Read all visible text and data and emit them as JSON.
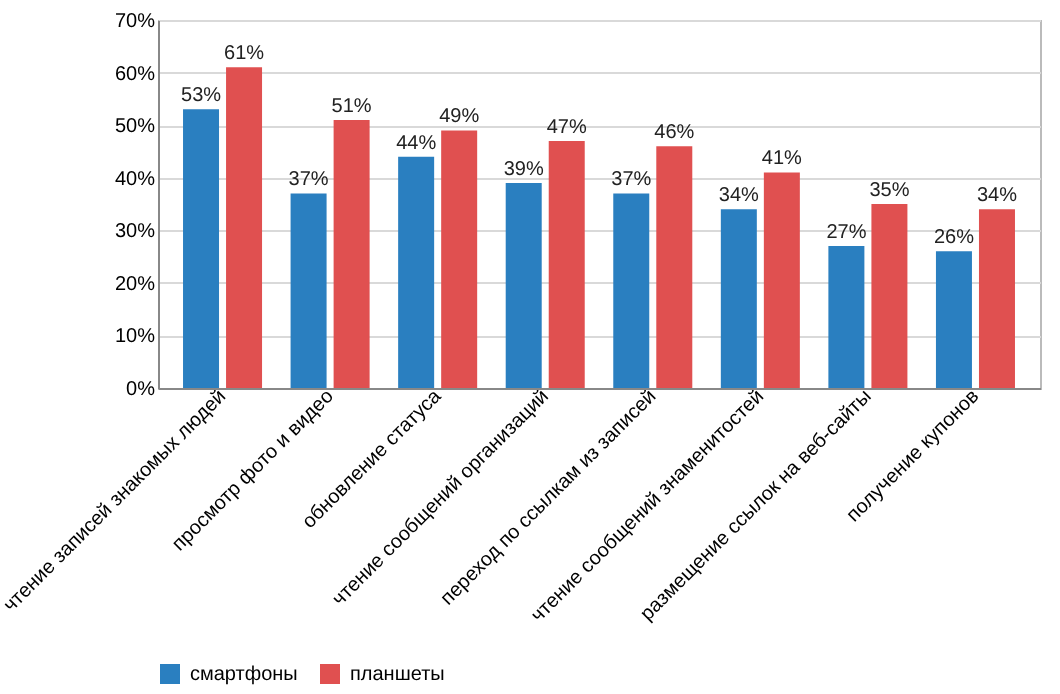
{
  "chart_data": {
    "type": "bar",
    "categories": [
      "чтение записей знакомых людей",
      "просмотр фото и видео",
      "обновление статуса",
      "чтение сообщений организаций",
      "переход по ссылкам из записей",
      "чтение сообщений знаменитостей",
      "размещение ссылок на веб-сайты",
      "получение купонов"
    ],
    "series": [
      {
        "name": "смартфоны",
        "color": "#2a7fc0",
        "values": [
          53,
          37,
          44,
          39,
          37,
          34,
          27,
          26
        ],
        "value_labels": [
          "53%",
          "37%",
          "44%",
          "39%",
          "37%",
          "34%",
          "27%",
          "26%"
        ]
      },
      {
        "name": "планшеты",
        "color": "#e05050",
        "values": [
          61,
          51,
          49,
          47,
          46,
          41,
          35,
          34
        ],
        "value_labels": [
          "61%",
          "51%",
          "49%",
          "47%",
          "46%",
          "41%",
          "35%",
          "34%"
        ]
      }
    ],
    "ylim": [
      0,
      70
    ],
    "yticks": [
      {
        "value": 0,
        "label": "0%"
      },
      {
        "value": 10,
        "label": "10%"
      },
      {
        "value": 20,
        "label": "20%"
      },
      {
        "value": 30,
        "label": "30%"
      },
      {
        "value": 40,
        "label": "40%"
      },
      {
        "value": 50,
        "label": "50%"
      },
      {
        "value": 60,
        "label": "60%"
      },
      {
        "value": 70,
        "label": "70%"
      }
    ],
    "grid": "y",
    "legend": "bottom"
  }
}
